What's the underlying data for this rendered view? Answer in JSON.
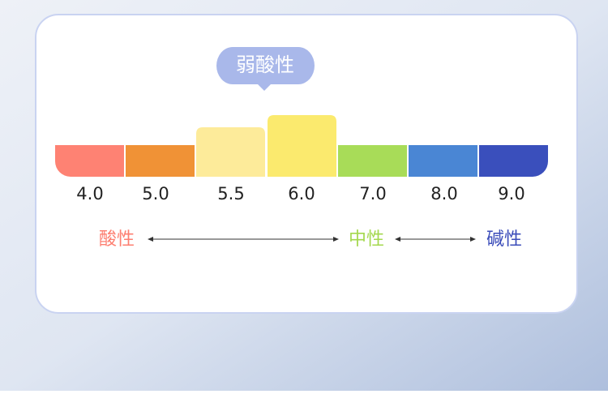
{
  "badge": "弱酸性",
  "scale": {
    "labels": [
      "4.0",
      "5.0",
      "5.5",
      "6.0",
      "7.0",
      "8.0",
      "9.0"
    ]
  },
  "legend": {
    "acidic": "酸性",
    "neutral": "中性",
    "alkaline": "碱性"
  }
}
